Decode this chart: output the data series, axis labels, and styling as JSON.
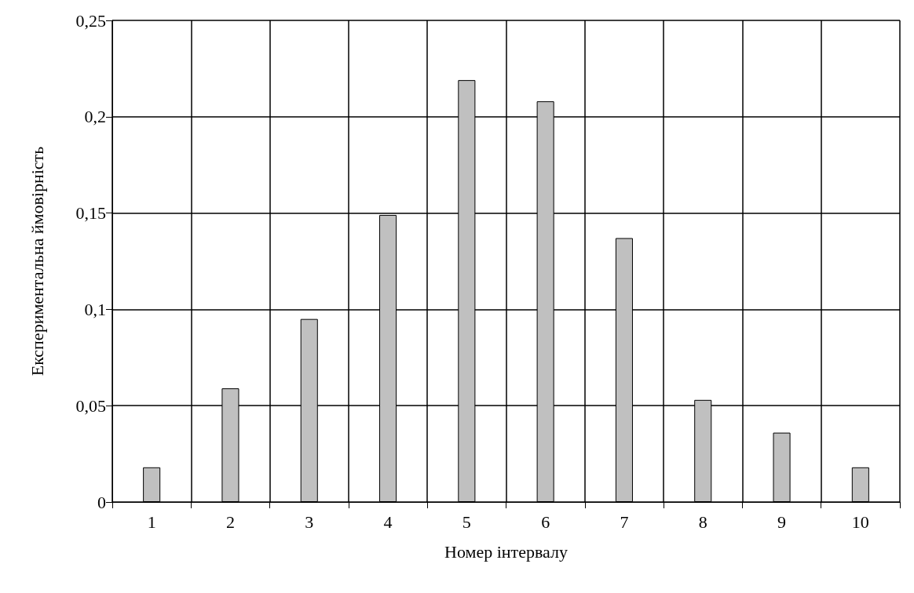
{
  "chart_data": {
    "type": "bar",
    "xlabel": "Номер інтервалу",
    "ylabel": "Експериментальна ймовірність",
    "categories": [
      "1",
      "2",
      "3",
      "4",
      "5",
      "6",
      "7",
      "8",
      "9",
      "10"
    ],
    "values": [
      0.018,
      0.059,
      0.095,
      0.149,
      0.219,
      0.208,
      0.137,
      0.053,
      0.036,
      0.018
    ],
    "color": "#c0c0c0",
    "ylim": [
      0,
      0.25
    ],
    "yticks": [
      0,
      {
        "value": 0.05,
        "label": "0,05"
      },
      {
        "value": 0.1,
        "label": "0,1"
      },
      {
        "value": 0.15,
        "label": "0,15"
      },
      {
        "value": 0.2,
        "label": "0,2"
      },
      {
        "value": 0.25,
        "label": "0,25"
      }
    ],
    "grid": true
  }
}
